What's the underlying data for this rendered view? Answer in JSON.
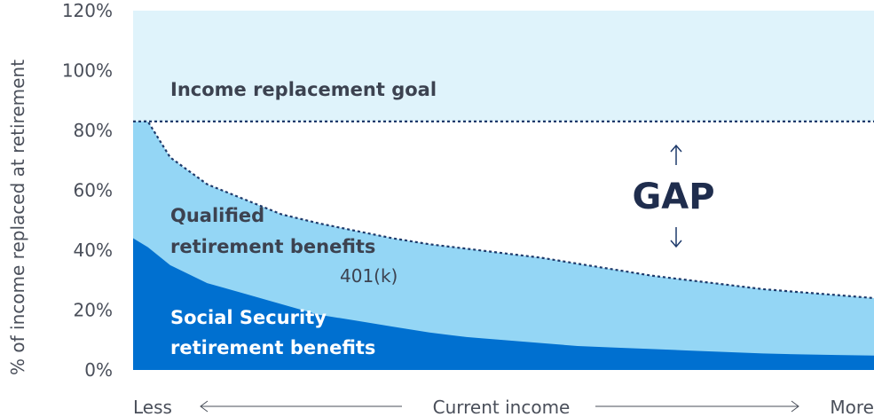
{
  "colors": {
    "goal_band": "#dff3fb",
    "qualified": "#94d6f5",
    "social_security": "#0070d0",
    "dotted_line": "#1e3a6b",
    "text_dark": "#3c4250",
    "text_light": "#ffffff"
  },
  "chart_data": {
    "type": "area",
    "ylabel": "% of income replaced at retirement",
    "ylim": [
      0,
      120
    ],
    "yticks": [
      "0%",
      "20%",
      "40%",
      "60%",
      "80%",
      "100%",
      "120%"
    ],
    "x_axis": {
      "left_label": "Less",
      "center_label": "Current income",
      "right_label": "More"
    },
    "x": [
      0,
      2,
      5,
      10,
      15,
      20,
      25,
      30,
      35,
      40,
      45,
      50,
      55,
      60,
      65,
      70,
      75,
      80,
      85,
      90,
      95,
      100
    ],
    "series": [
      {
        "key": "social_security",
        "values": [
          44,
          41,
          35,
          29,
          25.5,
          22,
          18.5,
          16.5,
          14.5,
          12.5,
          11,
          10,
          9,
          8,
          7.5,
          7,
          6.5,
          6,
          5.5,
          5.2,
          5,
          4.8
        ]
      },
      {
        "key": "total_benefits",
        "values": [
          83,
          83,
          71,
          62,
          57,
          52,
          49,
          46.5,
          44,
          42,
          40.5,
          39,
          37.5,
          35.5,
          33.5,
          31.5,
          30,
          28.5,
          27,
          26,
          25,
          24
        ]
      }
    ],
    "goal_value": 83,
    "labels": {
      "goal": "Income replacement goal",
      "qualified_line1": "Qualified",
      "qualified_line2": "retirement benefits",
      "qualified_note": "401(k)",
      "social_line1": "Social Security",
      "social_line2": "retirement benefits",
      "gap": "GAP"
    }
  }
}
